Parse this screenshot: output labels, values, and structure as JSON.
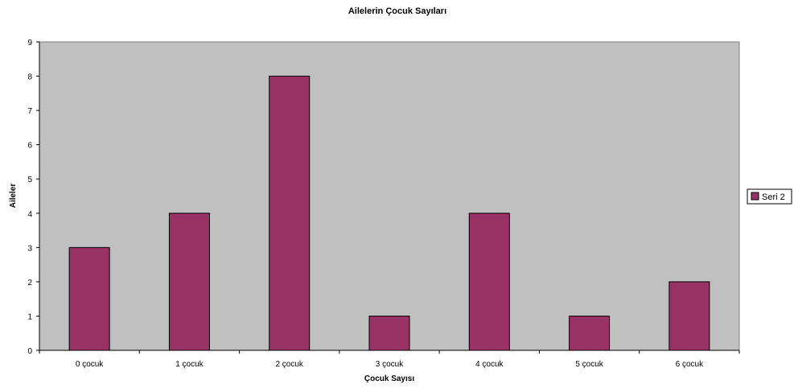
{
  "chart_data": {
    "type": "bar",
    "title": "Ailelerin Çocuk Sayıları",
    "xlabel": "Çocuk Sayısı",
    "ylabel": "Aileler",
    "categories": [
      "0 çocuk",
      "1 çocuk",
      "2 çocuk",
      "3 çocuk",
      "4 çocuk",
      "5 çocuk",
      "6 çocuk"
    ],
    "series": [
      {
        "name": "Seri 2",
        "values": [
          3,
          4,
          8,
          1,
          4,
          1,
          2
        ],
        "color": "#993366"
      }
    ],
    "ylim": [
      0,
      9
    ],
    "yticks": [
      0,
      1,
      2,
      3,
      4,
      5,
      6,
      7,
      8,
      9
    ],
    "grid": false,
    "legend_position": "right",
    "plot_background": "#c0c0c0"
  }
}
